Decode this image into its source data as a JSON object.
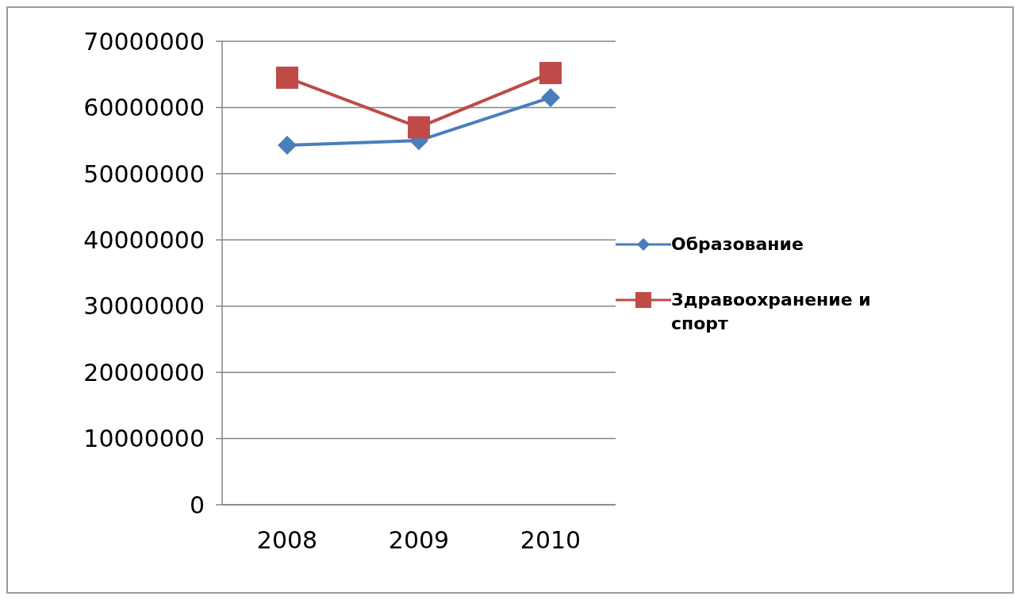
{
  "chart_data": {
    "type": "line",
    "categories": [
      "2008",
      "2009",
      "2010"
    ],
    "series": [
      {
        "name": "Образование",
        "color": "#4a7ebb",
        "marker": "diamond",
        "values": [
          54300000,
          55000000,
          61500000
        ]
      },
      {
        "name": "Здравоохранение и спорт",
        "color": "#be4b48",
        "marker": "square",
        "values": [
          64500000,
          57000000,
          65200000
        ]
      }
    ],
    "ylim": [
      0,
      70000000
    ],
    "yticks": [
      0,
      10000000,
      20000000,
      30000000,
      40000000,
      50000000,
      60000000,
      70000000
    ],
    "grid": "y",
    "legend": "right"
  }
}
